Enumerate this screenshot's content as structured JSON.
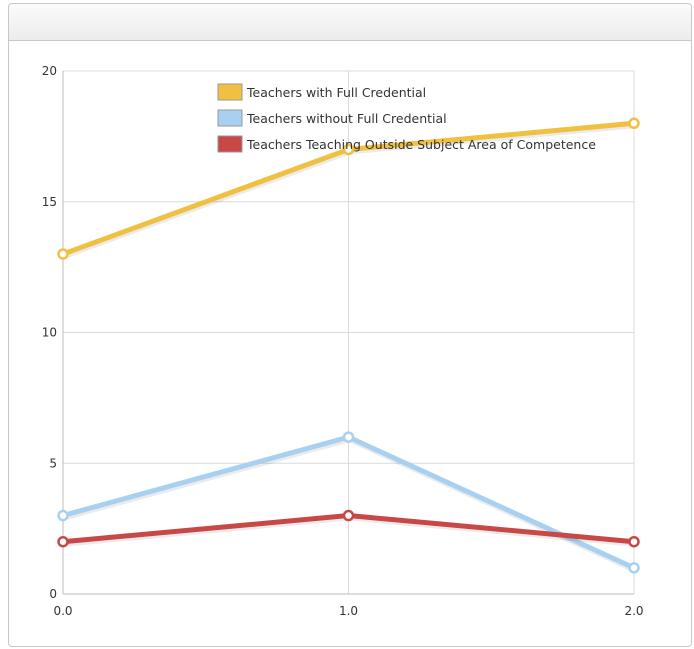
{
  "chart_data": {
    "type": "line",
    "title": "",
    "xlabel": "",
    "ylabel": "",
    "x": [
      0.0,
      1.0,
      2.0
    ],
    "xticks": [
      "0.0",
      "1.0",
      "2.0"
    ],
    "yticks": [
      "0",
      "5",
      "10",
      "15",
      "20"
    ],
    "xlim": [
      0,
      2
    ],
    "ylim": [
      0,
      20
    ],
    "grid": true,
    "legend_position": "top-center",
    "series": [
      {
        "name": "Teachers with Full Credential",
        "values": [
          13,
          17,
          18
        ],
        "color": "#f0c040"
      },
      {
        "name": "Teachers without Full Credential",
        "values": [
          3,
          6,
          1
        ],
        "color": "#a8d0f0"
      },
      {
        "name": "Teachers Teaching Outside Subject Area of Competence",
        "values": [
          2,
          3,
          2
        ],
        "color": "#c84848"
      }
    ]
  }
}
